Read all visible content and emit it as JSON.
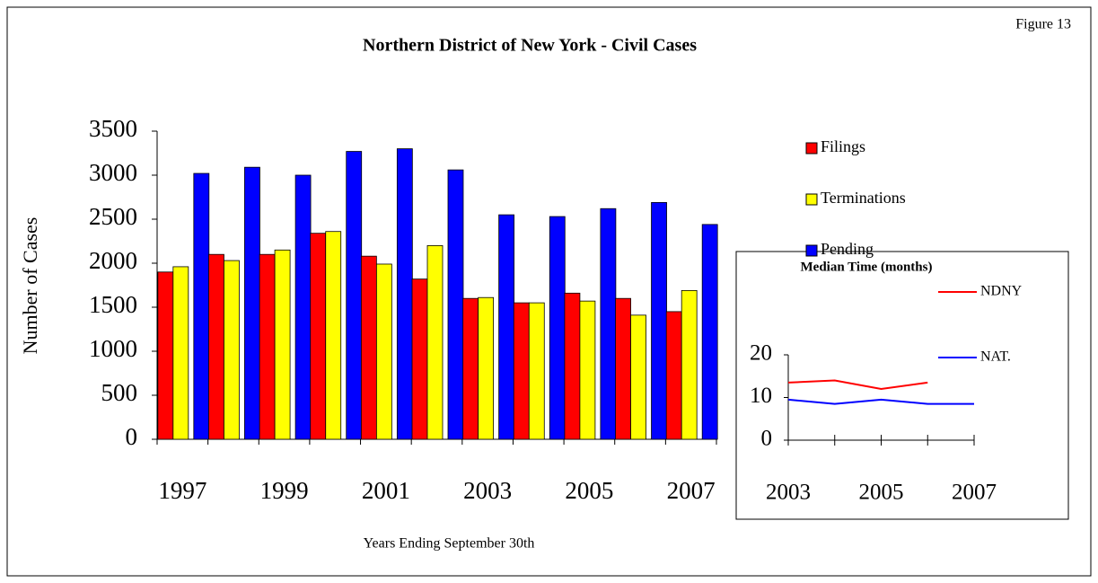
{
  "chart_data": [
    {
      "type": "bar",
      "title": "Northern District of New York    -    Civil Cases",
      "annotation": "Figure 13",
      "y_label": "Number of Cases",
      "x_label": "Years Ending September 30th",
      "categories": [
        "1997",
        null,
        "1999",
        null,
        "2001",
        null,
        "2003",
        null,
        "2005",
        null,
        "2007"
      ],
      "series": [
        {
          "name": "Filings",
          "color": "#ff0000",
          "values": [
            1900,
            2100,
            2100,
            2340,
            2080,
            1820,
            1600,
            1550,
            1660,
            1600,
            1450
          ]
        },
        {
          "name": "Terminations",
          "color": "#ffff00",
          "values": [
            1960,
            2030,
            2150,
            2360,
            1990,
            2200,
            1610,
            1550,
            1570,
            1410,
            1690
          ]
        },
        {
          "name": "Pending",
          "color": "#0000ff",
          "values": [
            3020,
            3090,
            3000,
            3270,
            3300,
            3060,
            2550,
            2530,
            2620,
            2690,
            2440
          ]
        }
      ],
      "ylim": [
        0,
        3500
      ],
      "yticks": [
        0,
        500,
        1000,
        1500,
        2000,
        2500,
        3000,
        3500
      ]
    },
    {
      "type": "line",
      "title": "Median Time (months)",
      "categories": [
        "2003",
        null,
        "2005",
        null,
        "2007"
      ],
      "series": [
        {
          "name": "NDNY",
          "color": "#ff0000",
          "values": [
            13.5,
            14,
            12,
            13.5,
            null
          ]
        },
        {
          "name": "NAT.",
          "color": "#0000ff",
          "values": [
            9.5,
            8.5,
            9.5,
            8.5,
            8.5
          ]
        }
      ],
      "ylim": [
        0,
        20
      ],
      "yticks": [
        0,
        10,
        20
      ]
    }
  ]
}
